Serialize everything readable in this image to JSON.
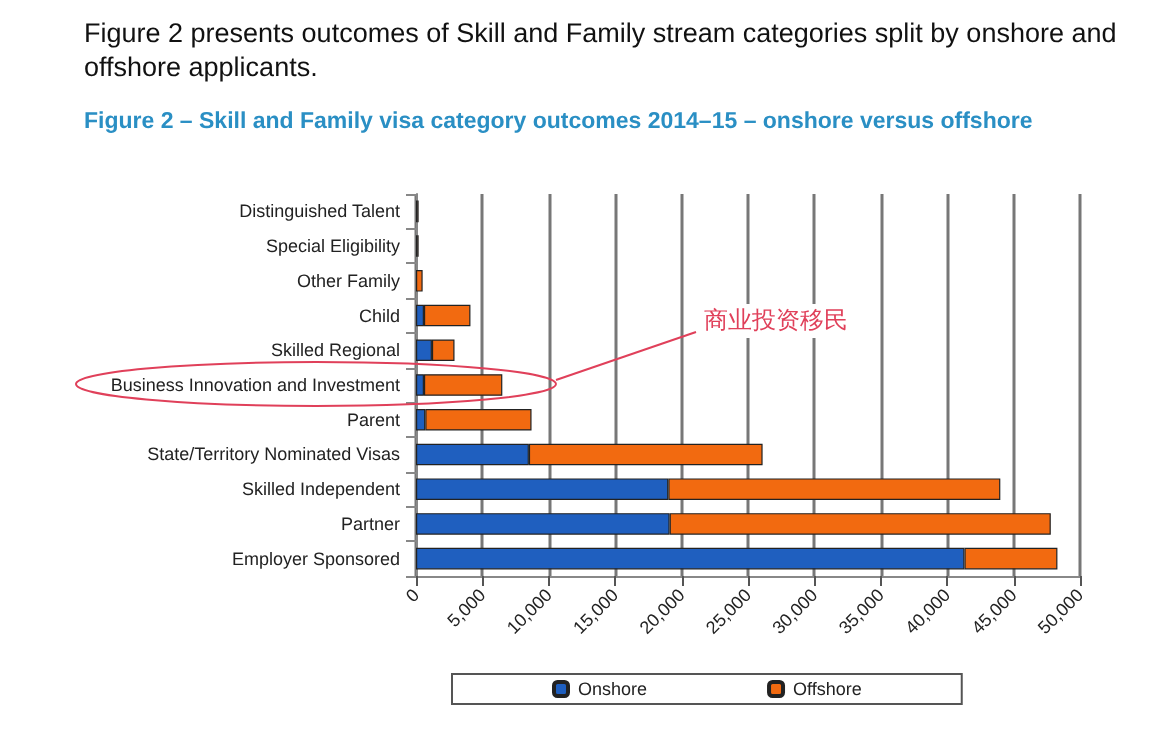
{
  "chart_data": {
    "type": "bar",
    "orientation": "horizontal",
    "stacked": true,
    "title": "Figure 2 – Skill and Family visa category outcomes 2014–15 – onshore versus offshore",
    "categories": [
      "Distinguished Talent",
      "Special Eligibility",
      "Other Family",
      "Child",
      "Skilled Regional",
      "Business Innovation and Investment",
      "Parent",
      "State/Territory Nominated Visas",
      "Skilled Independent",
      "Partner",
      "Employer Sponsored"
    ],
    "series": [
      {
        "name": "Onshore",
        "color": "#1f5fbf",
        "values": [
          100,
          100,
          null,
          600,
          1200,
          600,
          700,
          8500,
          19000,
          19100,
          41300
        ]
      },
      {
        "name": "Offshore",
        "color": "#f26a10",
        "values": [
          100,
          100,
          500,
          3500,
          1700,
          5900,
          8000,
          17600,
          25000,
          28700,
          7000
        ]
      }
    ],
    "xlim": [
      0,
      50000
    ],
    "xticks": [
      0,
      {
        "value": 5000,
        "label": "5,000"
      },
      {
        "value": 10000,
        "label": "10,000"
      },
      {
        "value": 15000,
        "label": "15,000"
      },
      {
        "value": 20000,
        "label": "20,000"
      },
      {
        "value": 25000,
        "label": "25,000"
      },
      {
        "value": 30000,
        "label": "30,000"
      },
      {
        "value": 35000,
        "label": "35,000"
      },
      {
        "value": 40000,
        "label": "40,000"
      },
      {
        "value": 45000,
        "label": "45,000"
      },
      {
        "value": 50000,
        "label": "50,000"
      }
    ],
    "grid": "x",
    "legend": "bottom",
    "annotations": [
      "Figure 2 presents outcomes of Skill and Family stream categories split by onshore and offshore applicants.",
      "商业投资移民"
    ]
  }
}
